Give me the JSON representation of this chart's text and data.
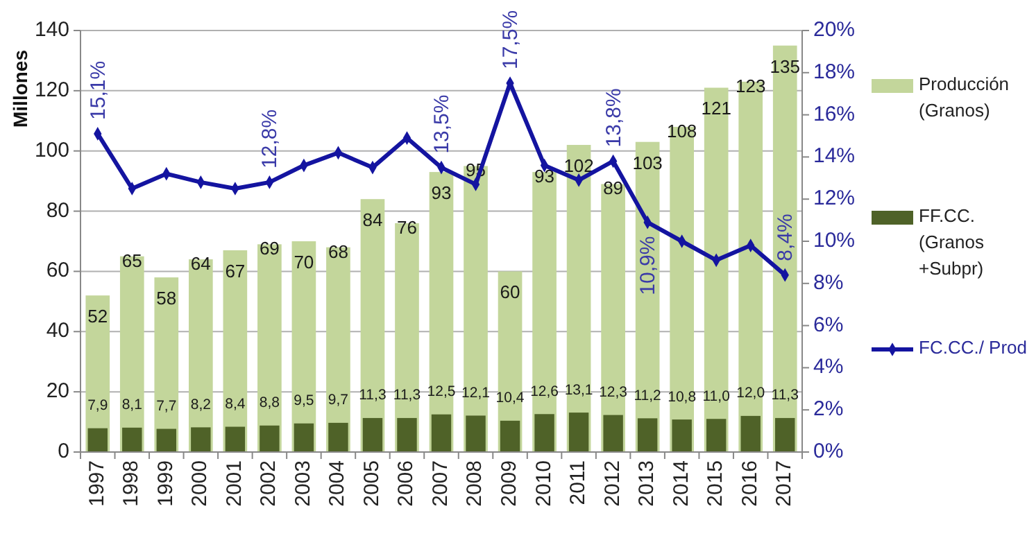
{
  "chart_data": {
    "type": "bar",
    "ylabel": "Millones",
    "categories": [
      "1997",
      "1998",
      "1999",
      "2000",
      "2001",
      "2002",
      "2003",
      "2004",
      "2005",
      "2006",
      "2007",
      "2008",
      "2009",
      "2010",
      "2011",
      "2012",
      "2013",
      "2014",
      "2015",
      "2016",
      "2017"
    ],
    "series": [
      {
        "name": "Producción (Granos)",
        "color": "#c3d69b",
        "values": [
          52,
          65,
          58,
          64,
          67,
          69,
          70,
          68,
          84,
          76,
          93,
          95,
          60,
          93,
          102,
          89,
          103,
          108,
          121,
          123,
          135
        ],
        "value_labels": [
          "52",
          "65",
          "58",
          "64",
          "67",
          "69",
          "70",
          "68",
          "84",
          "76",
          "93",
          "95",
          "60",
          "93",
          "102",
          "89",
          "103",
          "108",
          "121",
          "123",
          "135"
        ]
      },
      {
        "name": "FF.CC. (Granos +Subpr)",
        "color": "#4f6228",
        "values": [
          7.9,
          8.1,
          7.7,
          8.2,
          8.4,
          8.8,
          9.5,
          9.7,
          11.3,
          11.3,
          12.5,
          12.1,
          10.4,
          12.6,
          13.1,
          12.3,
          11.2,
          10.8,
          11.0,
          12.0,
          11.3
        ],
        "value_labels": [
          "7,9",
          "8,1",
          "7,7",
          "8,2",
          "8,4",
          "8,8",
          "9,5",
          "9,7",
          "11,3",
          "11,3",
          "12,5",
          "12,1",
          "10,4",
          "12,6",
          "13,1",
          "12,3",
          "11,2",
          "10,8",
          "11,0",
          "12,0",
          "11,3"
        ]
      },
      {
        "name": "FC.CC./ Prod",
        "type": "line",
        "axis": "y2",
        "color": "#1414a0",
        "marker": "diamond",
        "values": [
          15.1,
          12.5,
          13.2,
          12.8,
          12.5,
          12.8,
          13.6,
          14.2,
          13.5,
          14.9,
          13.5,
          12.7,
          17.5,
          13.6,
          12.9,
          13.8,
          10.9,
          10.0,
          9.1,
          9.8,
          8.4
        ],
        "value_labels": [
          "15,1%",
          null,
          null,
          null,
          null,
          "12,8%",
          null,
          null,
          null,
          null,
          "13,5%",
          null,
          "17,5%",
          null,
          null,
          "13,8%",
          "10,9%",
          null,
          null,
          null,
          "8,4%"
        ]
      }
    ],
    "ylim": [
      0,
      140
    ],
    "yticks": [
      0,
      20,
      40,
      60,
      80,
      100,
      120,
      140
    ],
    "y2lim": [
      0,
      20
    ],
    "y2ticks": [
      {
        "value": 0,
        "label": "0%"
      },
      {
        "value": 2,
        "label": "2%"
      },
      {
        "value": 4,
        "label": "4%"
      },
      {
        "value": 6,
        "label": "6%"
      },
      {
        "value": 8,
        "label": "8%"
      },
      {
        "value": 10,
        "label": "10%"
      },
      {
        "value": 12,
        "label": "12%"
      },
      {
        "value": 14,
        "label": "14%"
      },
      {
        "value": 16,
        "label": "16%"
      },
      {
        "value": 18,
        "label": "18%"
      },
      {
        "value": 20,
        "label": "20%"
      }
    ],
    "grid": "y",
    "legend": "right"
  }
}
